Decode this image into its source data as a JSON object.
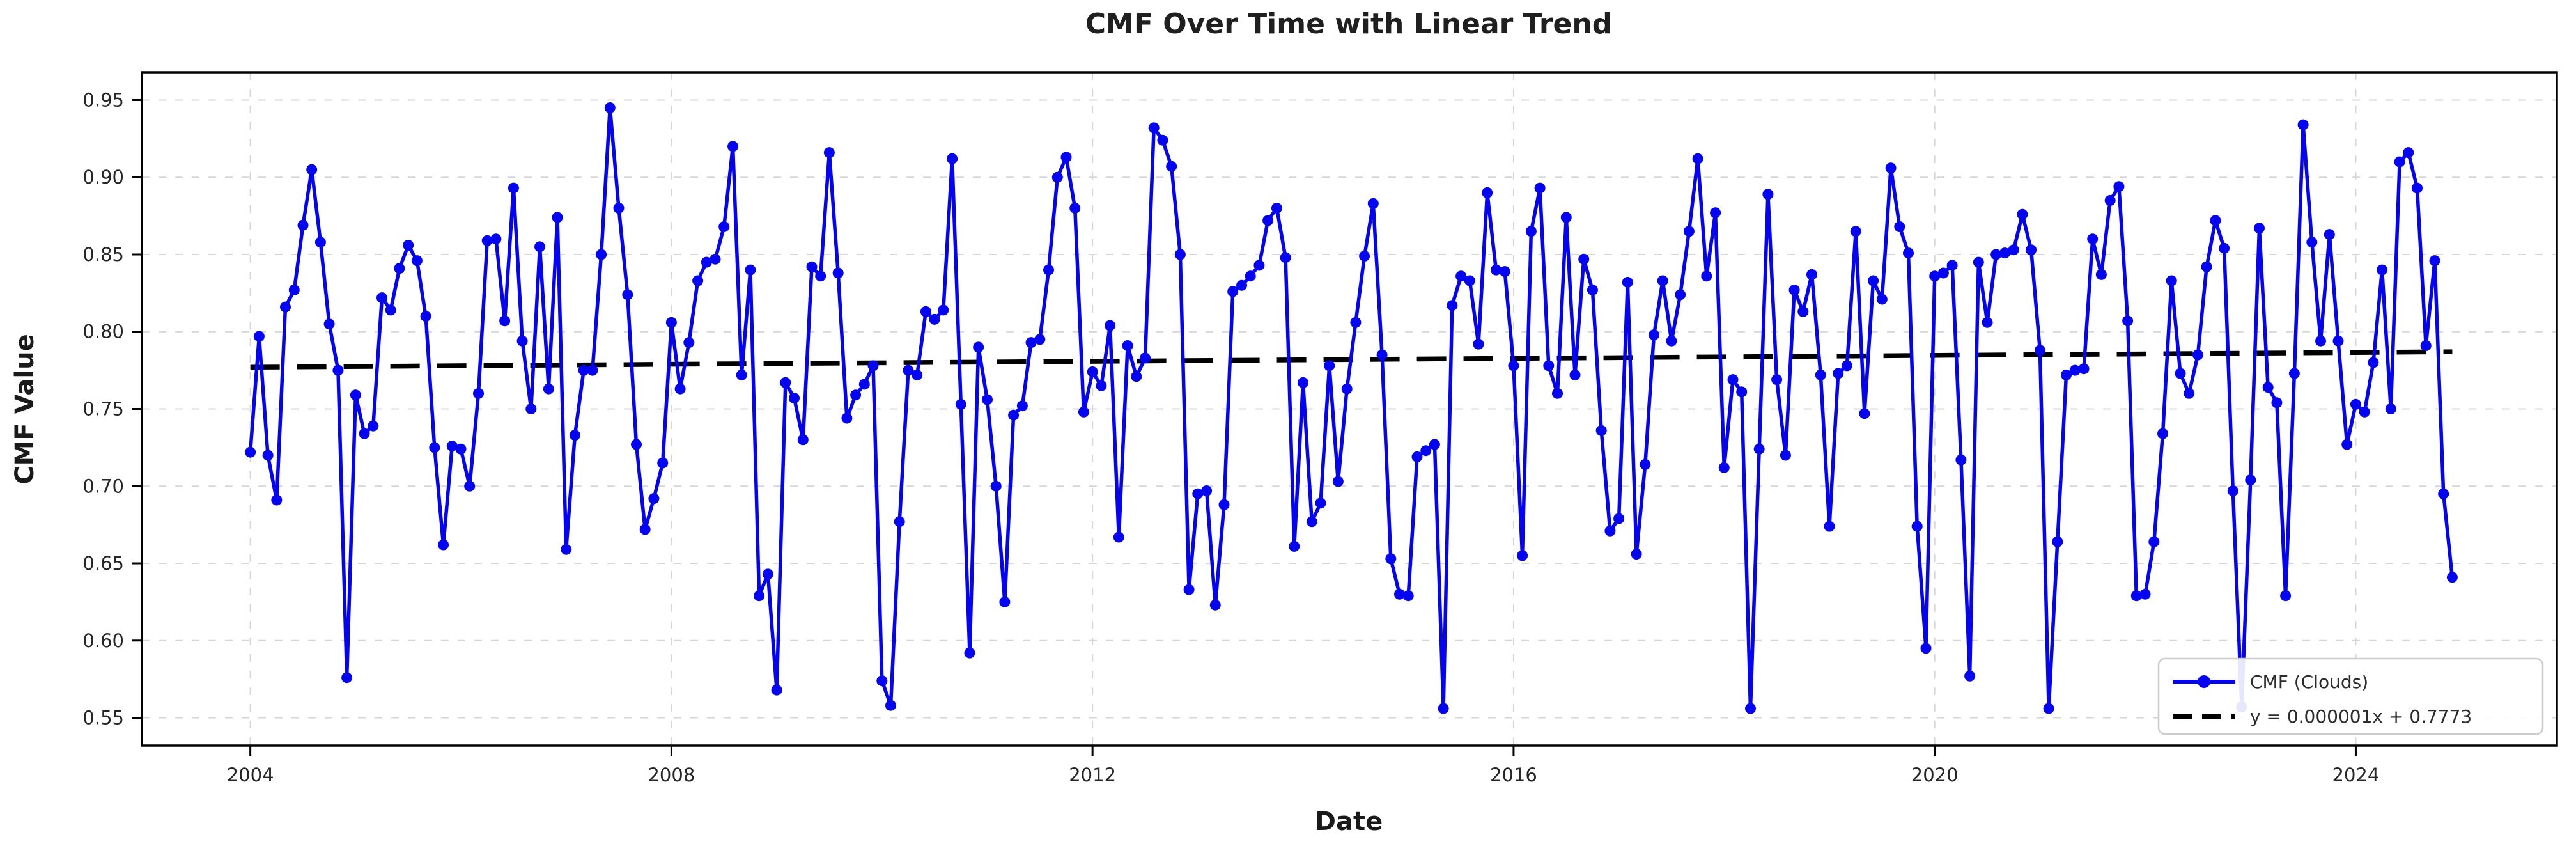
{
  "figure": {
    "title": "CMF Over Time with Linear Trend",
    "x_axis_label": "Date",
    "y_axis_label": "CMF Value"
  },
  "legend": {
    "series_label": "CMF (Clouds)",
    "trend_label": "y = 0.000001x + 0.7773"
  },
  "colors": {
    "series_line": "#0404f2",
    "trend_line": "#000000",
    "grid": "#d6d6d6",
    "spine": "#000000",
    "text": "#1a1a1a",
    "legend_border": "#cccccc",
    "legend_bg": "#ffffff"
  },
  "chart_data": {
    "type": "line",
    "title": "CMF Over Time with Linear Trend",
    "xlabel": "Date",
    "ylabel": "CMF Value",
    "x_start_year": 2004,
    "x_frequency": "monthly",
    "x_tick_labels": [
      "2004",
      "2008",
      "2012",
      "2016",
      "2020",
      "2024"
    ],
    "x_tick_years": [
      2004,
      2008,
      2012,
      2016,
      2020,
      2024
    ],
    "y_tick_labels": [
      "0.55",
      "0.60",
      "0.65",
      "0.70",
      "0.75",
      "0.80",
      "0.85",
      "0.90",
      "0.95"
    ],
    "y_ticks": [
      0.55,
      0.6,
      0.65,
      0.7,
      0.75,
      0.8,
      0.85,
      0.9,
      0.95
    ],
    "ylim": [
      0.532,
      0.968
    ],
    "xlim": [
      2002.97,
      2025.91
    ],
    "grid": true,
    "legend_position": "lower right",
    "series": [
      {
        "name": "CMF (Clouds)",
        "values": [
          0.722,
          0.797,
          0.72,
          0.691,
          0.816,
          0.827,
          0.869,
          0.905,
          0.858,
          0.805,
          0.775,
          0.576,
          0.759,
          0.734,
          0.739,
          0.822,
          0.814,
          0.841,
          0.856,
          0.846,
          0.81,
          0.725,
          0.662,
          0.726,
          0.724,
          0.7,
          0.76,
          0.859,
          0.86,
          0.807,
          0.893,
          0.794,
          0.75,
          0.855,
          0.763,
          0.874,
          0.659,
          0.733,
          0.775,
          0.775,
          0.85,
          0.945,
          0.88,
          0.824,
          0.727,
          0.672,
          0.692,
          0.715,
          0.806,
          0.763,
          0.793,
          0.833,
          0.845,
          0.847,
          0.868,
          0.92,
          0.772,
          0.84,
          0.629,
          0.643,
          0.568,
          0.767,
          0.757,
          0.73,
          0.842,
          0.836,
          0.916,
          0.838,
          0.744,
          0.759,
          0.766,
          0.778,
          0.574,
          0.558,
          0.677,
          0.775,
          0.772,
          0.813,
          0.808,
          0.814,
          0.912,
          0.753,
          0.592,
          0.79,
          0.756,
          0.7,
          0.625,
          0.746,
          0.752,
          0.793,
          0.795,
          0.84,
          0.9,
          0.913,
          0.88,
          0.748,
          0.774,
          0.765,
          0.804,
          0.667,
          0.791,
          0.771,
          0.783,
          0.932,
          0.924,
          0.907,
          0.85,
          0.633,
          0.695,
          0.697,
          0.623,
          0.688,
          0.826,
          0.83,
          0.836,
          0.843,
          0.872,
          0.88,
          0.848,
          0.661,
          0.767,
          0.677,
          0.689,
          0.778,
          0.703,
          0.763,
          0.806,
          0.849,
          0.883,
          0.785,
          0.653,
          0.63,
          0.629,
          0.719,
          0.723,
          0.727,
          0.556,
          0.817,
          0.836,
          0.833,
          0.792,
          0.89,
          0.84,
          0.839,
          0.778,
          0.655,
          0.865,
          0.893,
          0.778,
          0.76,
          0.874,
          0.772,
          0.847,
          0.827,
          0.736,
          0.671,
          0.679,
          0.832,
          0.656,
          0.714,
          0.798,
          0.833,
          0.794,
          0.824,
          0.865,
          0.912,
          0.836,
          0.877,
          0.712,
          0.769,
          0.761,
          0.556,
          0.724,
          0.889,
          0.769,
          0.72,
          0.827,
          0.813,
          0.837,
          0.772,
          0.674,
          0.773,
          0.778,
          0.865,
          0.747,
          0.833,
          0.821,
          0.906,
          0.868,
          0.851,
          0.674,
          0.595,
          0.836,
          0.838,
          0.843,
          0.717,
          0.577,
          0.845,
          0.806,
          0.85,
          0.851,
          0.853,
          0.876,
          0.853,
          0.788,
          0.556,
          0.664,
          0.772,
          0.775,
          0.776,
          0.86,
          0.837,
          0.885,
          0.894,
          0.807,
          0.629,
          0.63,
          0.664,
          0.734,
          0.833,
          0.773,
          0.76,
          0.785,
          0.842,
          0.872,
          0.854,
          0.697,
          0.557,
          0.704,
          0.867,
          0.764,
          0.754,
          0.629,
          0.773,
          0.934,
          0.858,
          0.794,
          0.863,
          0.794,
          0.727,
          0.753,
          0.748,
          0.78,
          0.84,
          0.75,
          0.91,
          0.916,
          0.893,
          0.791,
          0.846,
          0.695,
          0.641
        ]
      }
    ],
    "trend": {
      "label": "y = 0.000001x + 0.7773",
      "slope_text": "0.000001",
      "intercept_text": "0.7773",
      "value_at_start": 0.777,
      "value_at_end": 0.787,
      "style": "dashed"
    }
  }
}
